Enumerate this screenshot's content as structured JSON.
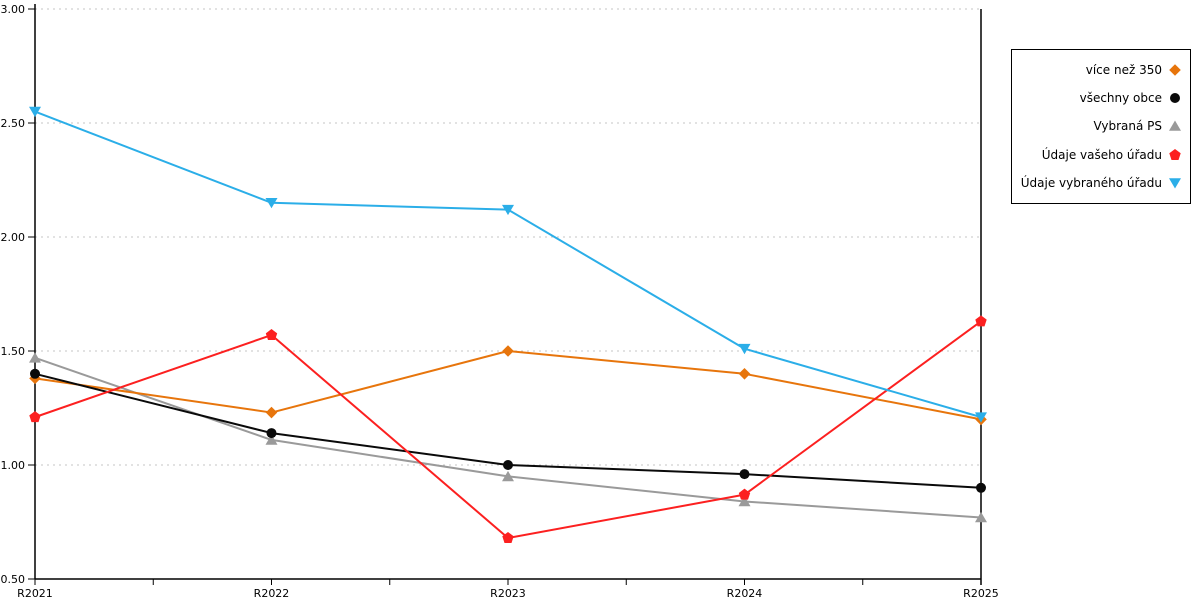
{
  "chart_data": {
    "type": "line",
    "title": "",
    "xlabel": "",
    "ylabel": "",
    "categories": [
      "R2021",
      "R2022",
      "R2023",
      "R2024",
      "R2025"
    ],
    "series": [
      {
        "name": "více než 350",
        "marker": "diamond",
        "color": "#E7750C",
        "values": [
          1.38,
          1.23,
          1.5,
          1.4,
          1.2
        ]
      },
      {
        "name": "všechny obce",
        "marker": "circle",
        "color": "#0A0A0A",
        "values": [
          1.4,
          1.14,
          1.0,
          0.96,
          0.9
        ]
      },
      {
        "name": "Vybraná PS",
        "marker": "triangle-up",
        "color": "#9A9A9A",
        "values": [
          1.47,
          1.11,
          0.95,
          0.84,
          0.77
        ]
      },
      {
        "name": "Údaje vašeho úřadu",
        "marker": "pentagon",
        "color": "#FC2020",
        "values": [
          1.21,
          1.57,
          0.68,
          0.87,
          1.63
        ]
      },
      {
        "name": "Údaje vybraného úřadu",
        "marker": "triangle-down",
        "color": "#2BAEE8",
        "values": [
          2.55,
          2.15,
          2.12,
          1.51,
          1.21
        ]
      }
    ],
    "y_ticks": [
      {
        "value": 0.5,
        "label": "0.50"
      },
      {
        "value": 1.0,
        "label": "1.00"
      },
      {
        "value": 1.5,
        "label": "1.50"
      },
      {
        "value": 2.0,
        "label": "2.00"
      },
      {
        "value": 2.5,
        "label": "2.50"
      },
      {
        "value": 3.0,
        "label": "3.00"
      }
    ],
    "ylim": [
      0.5,
      3.0
    ],
    "grid": "horizontal-dotted",
    "grid_color": "#C4C4C4",
    "legend_position": "outside-top-right"
  }
}
